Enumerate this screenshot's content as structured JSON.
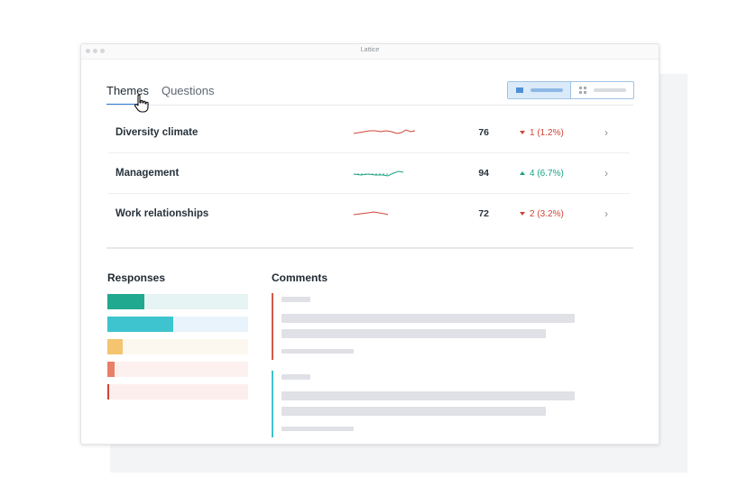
{
  "window": {
    "title": "Lattice"
  },
  "tabs": [
    {
      "label": "Themes",
      "active": true
    },
    {
      "label": "Questions",
      "active": false
    }
  ],
  "themes": [
    {
      "name": "Diversity climate",
      "score": "76",
      "change": "1 (1.2%)",
      "direction": "down",
      "color": "#d04437"
    },
    {
      "name": "Management",
      "score": "94",
      "change": "4 (6.7%)",
      "direction": "up",
      "color": "#1aa383"
    },
    {
      "name": "Work relationships",
      "score": "72",
      "change": "2 (3.2%)",
      "direction": "down",
      "color": "#d04437"
    }
  ],
  "responses": {
    "title": "Responses",
    "bars": [
      {
        "fill": 0.26,
        "color": "#21a98f",
        "track": "#e6f4f3"
      },
      {
        "fill": 0.47,
        "color": "#3ec4cf",
        "track": "#e8f3fb"
      },
      {
        "fill": 0.11,
        "color": "#f4c470",
        "track": "#fdf8ef"
      },
      {
        "fill": 0.05,
        "color": "#e97f66",
        "track": "#fdf1ef"
      },
      {
        "fill": 0.01,
        "color": "#d04437",
        "track": "#fdeeee"
      }
    ]
  },
  "comments": {
    "title": "Comments"
  }
}
